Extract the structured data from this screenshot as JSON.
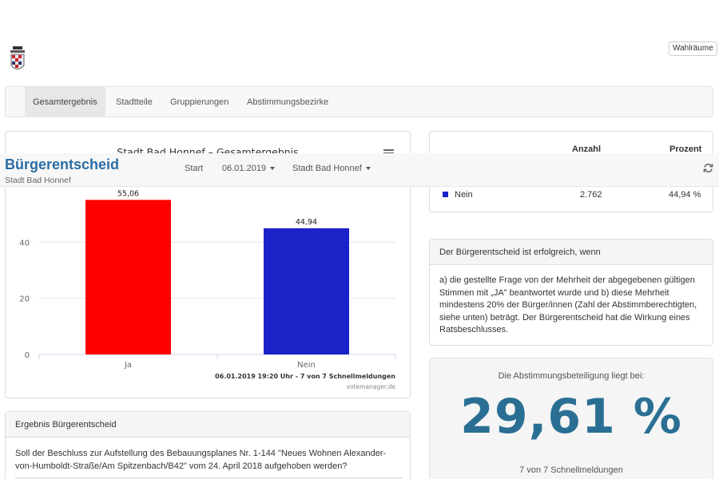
{
  "header": {
    "logo_icon": "coat-of-arms-icon",
    "wahlraeume_label": "Wahlräume"
  },
  "nav": {
    "tabs": [
      {
        "label": "Gesamtergebnis",
        "active": true
      },
      {
        "label": "Stadtteile",
        "active": false
      },
      {
        "label": "Gruppierungen",
        "active": false
      },
      {
        "label": "Abstimmungsbezirke",
        "active": false
      }
    ]
  },
  "sticky": {
    "brand": "Bürgerentscheid",
    "subtitle": "Stadt Bad Honnef",
    "start_label": "Start",
    "date_label": "06.01.2019",
    "region_label": "Stadt Bad Honnef",
    "refresh_icon": "refresh-icon"
  },
  "chart_data": {
    "type": "bar",
    "title": "Stadt Bad Honnef – Gesamtergebnis",
    "categories": [
      "Ja",
      "Nein"
    ],
    "values": [
      55.06,
      44.94
    ],
    "value_labels": [
      "55,06",
      "44,94"
    ],
    "colors": [
      "#ff0000",
      "#1a22c8"
    ],
    "ylim": [
      0,
      60
    ],
    "yticks": [
      0,
      20,
      40
    ],
    "grid": true,
    "footer": "06.01.2019 19:20 Uhr - 7 von 7 Schnellmeldungen",
    "credit": "votemanager.de",
    "menu_icon": "hamburger-menu-icon"
  },
  "table": {
    "headers": {
      "anzahl": "Anzahl",
      "prozent": "Prozent"
    },
    "rows": [
      {
        "label": "Nein",
        "color": "#1a22c8",
        "anzahl": "2.762",
        "prozent": "44,94 %"
      }
    ]
  },
  "info": {
    "heading": "Der Bürgerentscheid ist erfolgreich, wenn",
    "body": "a) die gestellte Frage von der Mehrheit der abgegebenen gültigen Stimmen mit „JA\" beantwortet wurde und b) diese Mehrheit mindestens 20% der Bürger/innen (Zahl der Abstimmberechtigten, siehe unten) beträgt. Der Bürgerentscheid hat die Wirkung eines Ratsbeschlusses."
  },
  "turnout": {
    "label": "Die Abstimmungsbeteiligung liegt bei:",
    "value": "29,61 %",
    "count": "7 von 7 Schnellmeldungen"
  },
  "result": {
    "heading": "Ergebnis Bürgerentscheid",
    "question": "Soll der Beschluss zur Aufstellung des Bebauungsplanes Nr. 1-144 \"Neues Wohnen Alexander-von-Humboldt-Straße/Am Spitzenbach/B42\" vom 24. April 2018 aufgehoben werden?"
  }
}
